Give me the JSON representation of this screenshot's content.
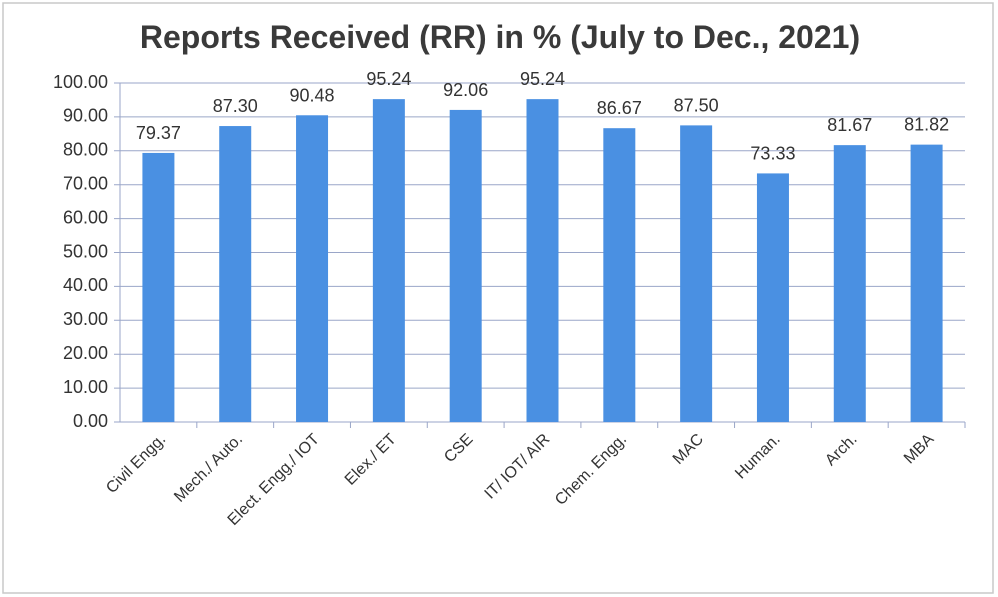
{
  "chart_data": {
    "type": "bar",
    "title": "Reports Received (RR) in % (July to Dec., 2021)",
    "categories": [
      "Civil Engg.",
      "Mech./ Auto.",
      "Elect. Engg./ IOT",
      "Elex./ ET",
      "CSE",
      "IT/ IOT/ AIR",
      "Chem. Engg.",
      "MAC",
      "Human.",
      "Arch.",
      "MBA"
    ],
    "values": [
      79.37,
      87.3,
      90.48,
      95.24,
      92.06,
      95.24,
      86.67,
      87.5,
      73.33,
      81.67,
      81.82
    ],
    "value_labels": [
      "79.37",
      "87.30",
      "90.48",
      "95.24",
      "92.06",
      "95.24",
      "86.67",
      "87.50",
      "73.33",
      "81.67",
      "81.82"
    ],
    "color": "#4a90e2",
    "ylim": [
      0,
      100
    ],
    "yticks": [
      {
        "value": 0,
        "label": "0.00"
      },
      {
        "value": 10,
        "label": "10.00"
      },
      {
        "value": 20,
        "label": "20.00"
      },
      {
        "value": 30,
        "label": "30.00"
      },
      {
        "value": 40,
        "label": "40.00"
      },
      {
        "value": 50,
        "label": "50.00"
      },
      {
        "value": 60,
        "label": "60.00"
      },
      {
        "value": 70,
        "label": "70.00"
      },
      {
        "value": 80,
        "label": "80.00"
      },
      {
        "value": 90,
        "label": "90.00"
      },
      {
        "value": 100,
        "label": "100.00"
      }
    ],
    "grid": true
  }
}
